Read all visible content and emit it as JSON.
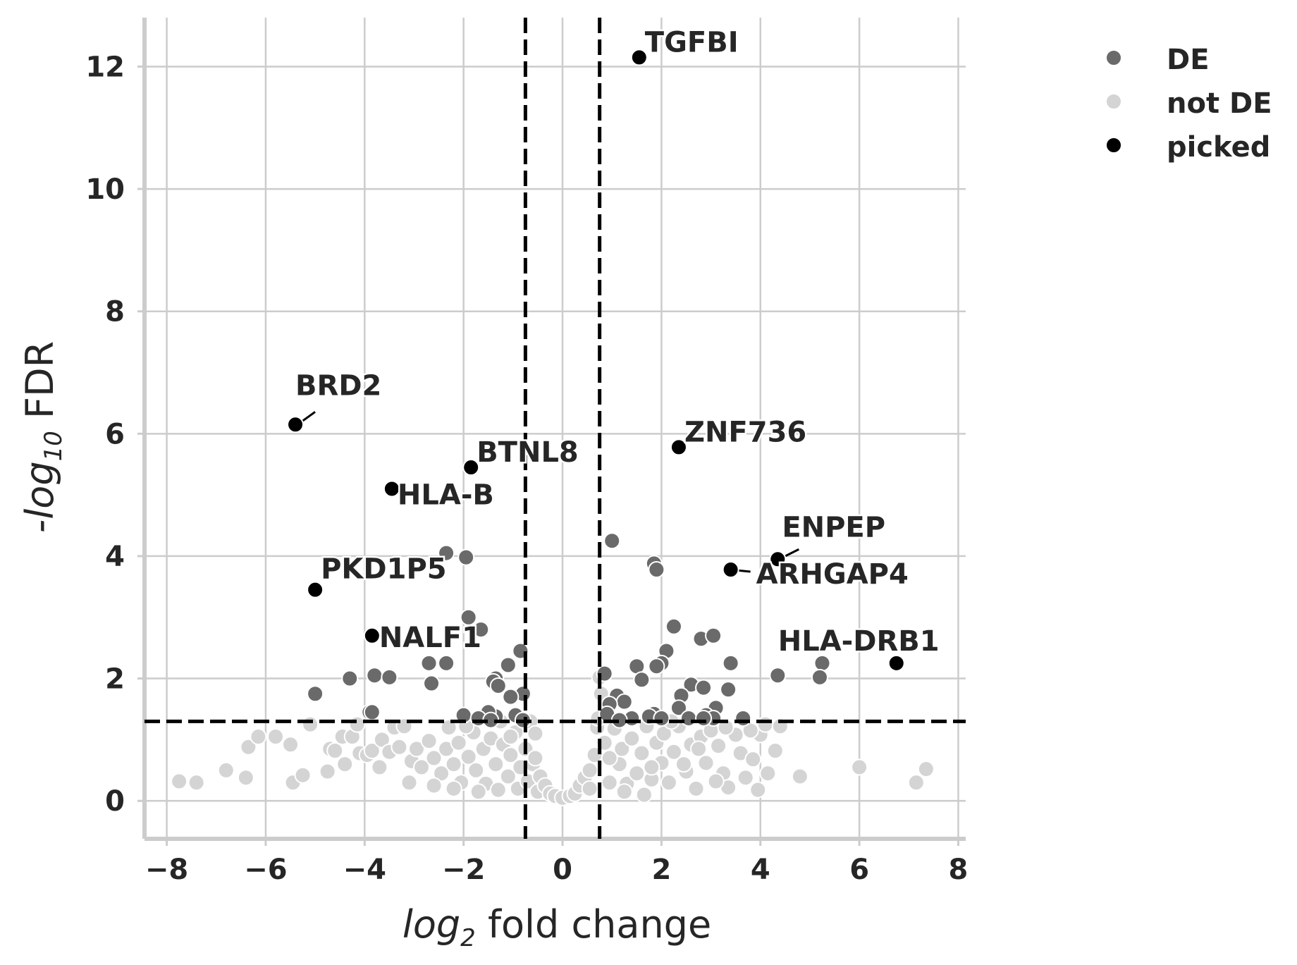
{
  "chart_data": {
    "type": "scatter",
    "title": "",
    "xlabel": {
      "prefix": "log",
      "sub": "2",
      "suffix": " fold change"
    },
    "ylabel": {
      "prefix": "-log",
      "sub": "10",
      "suffix": " FDR"
    },
    "xlim": [
      -8.45,
      8.15
    ],
    "ylim": [
      -0.62,
      12.8
    ],
    "xticks": [
      -8,
      -6,
      -4,
      -2,
      0,
      2,
      4,
      6,
      8
    ],
    "yticks": [
      0,
      2,
      4,
      6,
      8,
      10,
      12
    ],
    "grid": true,
    "thresholds": {
      "x": [
        -0.75,
        0.75
      ],
      "y": 1.3
    },
    "legend": {
      "placement": "outside top-right",
      "entries": [
        {
          "label": "DE",
          "color": "#6a6a6a"
        },
        {
          "label": "not DE",
          "color": "#d4d4d4"
        },
        {
          "label": "picked",
          "color": "#000000"
        }
      ]
    },
    "series": [
      {
        "name": "DE",
        "color": "#6a6a6a",
        "points": [
          [
            -2.35,
            4.05
          ],
          [
            -1.95,
            3.98
          ],
          [
            -1.9,
            3.0
          ],
          [
            -1.65,
            2.8
          ],
          [
            -0.85,
            2.45
          ],
          [
            -1.1,
            2.22
          ],
          [
            -2.7,
            2.25
          ],
          [
            -2.35,
            2.25
          ],
          [
            -2.65,
            1.92
          ],
          [
            -3.8,
            2.05
          ],
          [
            -3.5,
            2.02
          ],
          [
            -4.3,
            2.0
          ],
          [
            -5.0,
            1.75
          ],
          [
            -1.35,
            2.0
          ],
          [
            -1.4,
            1.95
          ],
          [
            -1.3,
            1.88
          ],
          [
            -0.8,
            1.75
          ],
          [
            -1.05,
            1.7
          ],
          [
            -1.35,
            1.38
          ],
          [
            -1.5,
            1.45
          ],
          [
            -2.0,
            1.4
          ],
          [
            -0.95,
            1.4
          ],
          [
            -3.9,
            1.45
          ],
          [
            -3.85,
            1.45
          ],
          [
            -1.7,
            1.35
          ],
          [
            -0.8,
            1.32
          ],
          [
            -1.45,
            1.32
          ],
          [
            1.0,
            4.25
          ],
          [
            1.85,
            3.88
          ],
          [
            1.9,
            3.78
          ],
          [
            2.25,
            2.85
          ],
          [
            2.1,
            2.45
          ],
          [
            2.0,
            2.25
          ],
          [
            1.9,
            2.2
          ],
          [
            1.5,
            2.2
          ],
          [
            1.6,
            1.98
          ],
          [
            0.85,
            2.08
          ],
          [
            2.8,
            2.65
          ],
          [
            3.05,
            2.7
          ],
          [
            3.4,
            2.25
          ],
          [
            2.6,
            1.9
          ],
          [
            2.85,
            1.85
          ],
          [
            2.4,
            1.72
          ],
          [
            3.35,
            1.82
          ],
          [
            4.35,
            2.05
          ],
          [
            5.25,
            2.25
          ],
          [
            5.2,
            2.02
          ],
          [
            1.1,
            1.72
          ],
          [
            1.25,
            1.62
          ],
          [
            0.95,
            1.58
          ],
          [
            2.35,
            1.52
          ],
          [
            3.1,
            1.52
          ],
          [
            2.9,
            1.4
          ],
          [
            3.05,
            1.35
          ],
          [
            3.65,
            1.35
          ],
          [
            2.55,
            1.35
          ],
          [
            1.85,
            1.42
          ],
          [
            1.75,
            1.38
          ],
          [
            0.9,
            1.42
          ],
          [
            1.4,
            1.35
          ],
          [
            2.0,
            1.35
          ],
          [
            2.85,
            1.35
          ],
          [
            1.15,
            1.32
          ]
        ]
      },
      {
        "name": "not DE",
        "color": "#d4d4d4",
        "points": [
          [
            -7.75,
            0.32
          ],
          [
            -7.4,
            0.3
          ],
          [
            -6.8,
            0.5
          ],
          [
            -6.4,
            0.38
          ],
          [
            -6.35,
            0.88
          ],
          [
            -6.15,
            1.05
          ],
          [
            -5.8,
            1.05
          ],
          [
            -5.5,
            0.92
          ],
          [
            -5.45,
            0.3
          ],
          [
            -5.25,
            0.42
          ],
          [
            -5.1,
            1.25
          ],
          [
            -4.7,
            0.85
          ],
          [
            -4.75,
            0.48
          ],
          [
            -4.6,
            0.82
          ],
          [
            -4.45,
            1.05
          ],
          [
            -4.25,
            1.05
          ],
          [
            -4.15,
            1.25
          ],
          [
            -4.1,
            0.78
          ],
          [
            -3.95,
            0.75
          ],
          [
            -3.85,
            0.82
          ],
          [
            -3.65,
            1.0
          ],
          [
            -3.5,
            0.8
          ],
          [
            -3.4,
            1.2
          ],
          [
            -3.3,
            0.88
          ],
          [
            -3.2,
            1.22
          ],
          [
            -3.05,
            0.65
          ],
          [
            -2.95,
            0.85
          ],
          [
            -2.85,
            0.55
          ],
          [
            -2.7,
            0.98
          ],
          [
            -2.6,
            0.7
          ],
          [
            -2.45,
            0.45
          ],
          [
            -2.35,
            0.85
          ],
          [
            -2.3,
            1.2
          ],
          [
            -2.2,
            0.6
          ],
          [
            -2.1,
            0.95
          ],
          [
            -2.05,
            0.3
          ],
          [
            -1.9,
            0.72
          ],
          [
            -1.8,
            1.12
          ],
          [
            -1.75,
            0.5
          ],
          [
            -1.6,
            0.85
          ],
          [
            -1.55,
            0.28
          ],
          [
            -1.45,
            1.02
          ],
          [
            -1.35,
            0.6
          ],
          [
            -1.3,
            0.18
          ],
          [
            -1.2,
            0.92
          ],
          [
            -1.1,
            0.4
          ],
          [
            -1.05,
            0.75
          ],
          [
            -0.95,
            1.12
          ],
          [
            -0.9,
            0.2
          ],
          [
            -0.85,
            0.55
          ],
          [
            -0.75,
            0.85
          ],
          [
            -0.7,
            0.32
          ],
          [
            -0.65,
            1.3
          ],
          [
            -0.6,
            0.6
          ],
          [
            -0.5,
            0.15
          ],
          [
            -0.45,
            0.4
          ],
          [
            -0.35,
            0.25
          ],
          [
            -0.25,
            0.12
          ],
          [
            -0.15,
            0.08
          ],
          [
            0.0,
            0.05
          ],
          [
            0.15,
            0.08
          ],
          [
            0.25,
            0.12
          ],
          [
            0.35,
            0.25
          ],
          [
            0.45,
            0.38
          ],
          [
            0.55,
            0.5
          ],
          [
            0.65,
            0.75
          ],
          [
            0.7,
            1.2
          ],
          [
            0.72,
            1.35
          ],
          [
            0.78,
            1.75
          ],
          [
            0.75,
            2.02
          ],
          [
            0.85,
            0.95
          ],
          [
            0.95,
            0.3
          ],
          [
            1.05,
            1.18
          ],
          [
            1.15,
            0.6
          ],
          [
            1.2,
            0.85
          ],
          [
            1.3,
            0.28
          ],
          [
            1.4,
            1.02
          ],
          [
            1.5,
            0.45
          ],
          [
            1.6,
            0.78
          ],
          [
            1.7,
            1.22
          ],
          [
            1.8,
            0.35
          ],
          [
            1.9,
            0.95
          ],
          [
            2.0,
            0.62
          ],
          [
            2.05,
            1.1
          ],
          [
            2.15,
            0.3
          ],
          [
            2.25,
            0.8
          ],
          [
            2.35,
            1.22
          ],
          [
            2.5,
            0.48
          ],
          [
            2.6,
            0.92
          ],
          [
            2.7,
            0.2
          ],
          [
            2.8,
            1.05
          ],
          [
            2.9,
            0.62
          ],
          [
            3.0,
            1.15
          ],
          [
            3.15,
            0.9
          ],
          [
            3.25,
            0.45
          ],
          [
            3.35,
            0.22
          ],
          [
            3.5,
            1.08
          ],
          [
            3.6,
            0.78
          ],
          [
            3.7,
            0.38
          ],
          [
            3.85,
            0.68
          ],
          [
            3.95,
            0.18
          ],
          [
            4.0,
            1.08
          ],
          [
            4.1,
            1.25
          ],
          [
            4.15,
            0.45
          ],
          [
            4.3,
            0.82
          ],
          [
            4.4,
            1.22
          ],
          [
            4.8,
            0.4
          ],
          [
            6.0,
            0.55
          ],
          [
            7.15,
            0.3
          ],
          [
            7.35,
            0.52
          ],
          [
            -1.05,
            1.05
          ],
          [
            -2.6,
            0.25
          ],
          [
            1.25,
            0.15
          ],
          [
            0.95,
            0.7
          ],
          [
            -0.55,
            1.1
          ],
          [
            -1.7,
            0.15
          ],
          [
            3.1,
            0.32
          ],
          [
            -3.7,
            0.55
          ],
          [
            2.45,
            0.6
          ],
          [
            -2.2,
            0.2
          ],
          [
            1.65,
            0.1
          ],
          [
            -1.25,
            1.3
          ],
          [
            2.2,
            1.3
          ],
          [
            3.3,
            1.2
          ],
          [
            -4.4,
            0.6
          ],
          [
            -3.1,
            0.3
          ],
          [
            0.55,
            0.2
          ],
          [
            -0.55,
            0.7
          ],
          [
            1.8,
            0.55
          ],
          [
            -1.95,
            1.22
          ],
          [
            2.75,
            0.85
          ],
          [
            3.8,
            1.15
          ]
        ]
      },
      {
        "name": "picked",
        "color": "#000000",
        "points": [
          {
            "x": 1.55,
            "y": 12.15,
            "label": "TGFBI"
          },
          {
            "x": -5.4,
            "y": 6.15,
            "label": "BRD2"
          },
          {
            "x": -1.85,
            "y": 5.45,
            "label": "BTNL8"
          },
          {
            "x": -3.45,
            "y": 5.1,
            "label": "HLA-B"
          },
          {
            "x": 2.35,
            "y": 5.78,
            "label": "ZNF736"
          },
          {
            "x": 4.35,
            "y": 3.95,
            "label": "ENPEP"
          },
          {
            "x": 3.4,
            "y": 3.78,
            "label": "ARHGAP4"
          },
          {
            "x": -5.0,
            "y": 3.45,
            "label": "PKD1P5"
          },
          {
            "x": -3.85,
            "y": 2.7,
            "label": "NALF1"
          },
          {
            "x": 6.75,
            "y": 2.25,
            "label": "HLA-DRB1"
          }
        ]
      }
    ]
  }
}
